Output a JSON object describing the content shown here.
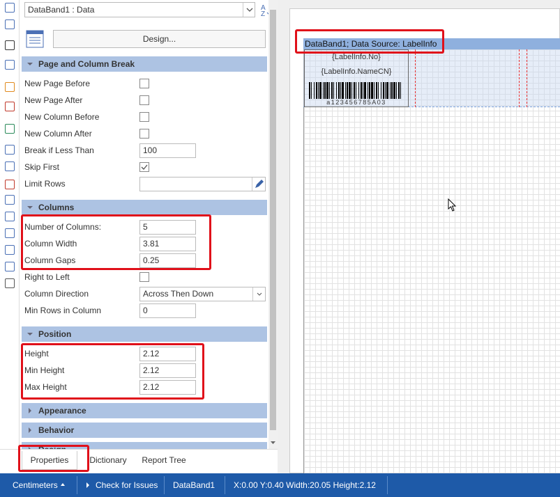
{
  "properties_panel": {
    "object_selector": "DataBand1 : Data",
    "design_button": "Design...",
    "sections": [
      {
        "title": "Page and Column Break",
        "expanded": true,
        "rows": [
          {
            "label": "New Page Before",
            "editor": "checkbox",
            "checked": false
          },
          {
            "label": "New Page After",
            "editor": "checkbox",
            "checked": false
          },
          {
            "label": "New Column Before",
            "editor": "checkbox",
            "checked": false
          },
          {
            "label": "New Column After",
            "editor": "checkbox",
            "checked": false
          },
          {
            "label": "Break if Less Than",
            "editor": "text",
            "value": 100
          },
          {
            "label": "Skip First",
            "editor": "checkbox",
            "checked": true
          },
          {
            "label": "Limit Rows",
            "editor": "text-with-button"
          }
        ]
      },
      {
        "title": "Columns",
        "expanded": true,
        "rows": [
          {
            "label": "Number of Columns:",
            "editor": "text",
            "value": 5
          },
          {
            "label": "Column Width",
            "editor": "text",
            "value": 3.81
          },
          {
            "label": "Column Gaps",
            "editor": "text",
            "value": 0.25
          },
          {
            "label": "Right to Left",
            "editor": "checkbox",
            "checked": false
          },
          {
            "label": "Column Direction",
            "editor": "dropdown",
            "value": "Across Then Down"
          },
          {
            "label": "Min Rows in Column",
            "editor": "text",
            "value": 0
          }
        ]
      },
      {
        "title": "Position",
        "expanded": true,
        "rows": [
          {
            "label": "Height",
            "editor": "text",
            "value": 2.12
          },
          {
            "label": "Min Height",
            "editor": "text",
            "value": 2.12
          },
          {
            "label": "Max Height",
            "editor": "text",
            "value": 2.12
          }
        ]
      },
      {
        "title": "Appearance",
        "expanded": false
      },
      {
        "title": "Behavior",
        "expanded": false
      },
      {
        "title": "Design",
        "expanded": false
      }
    ],
    "tabs": [
      "Properties",
      "Dictionary",
      "Report Tree"
    ],
    "active_tab": 0
  },
  "designer": {
    "band_caption": "DataBand1; Data Source: LabelInfo",
    "fields": [
      "{LabelInfo.No}",
      "{LabelInfo.NameCN}"
    ],
    "barcode_text": "a123456785A03"
  },
  "status_bar": {
    "units": "Centimeters",
    "check": "Check for Issues",
    "selection": "DataBand1",
    "position": "X:0.00 Y:0.40 Width:20.05 Height:2.12"
  }
}
